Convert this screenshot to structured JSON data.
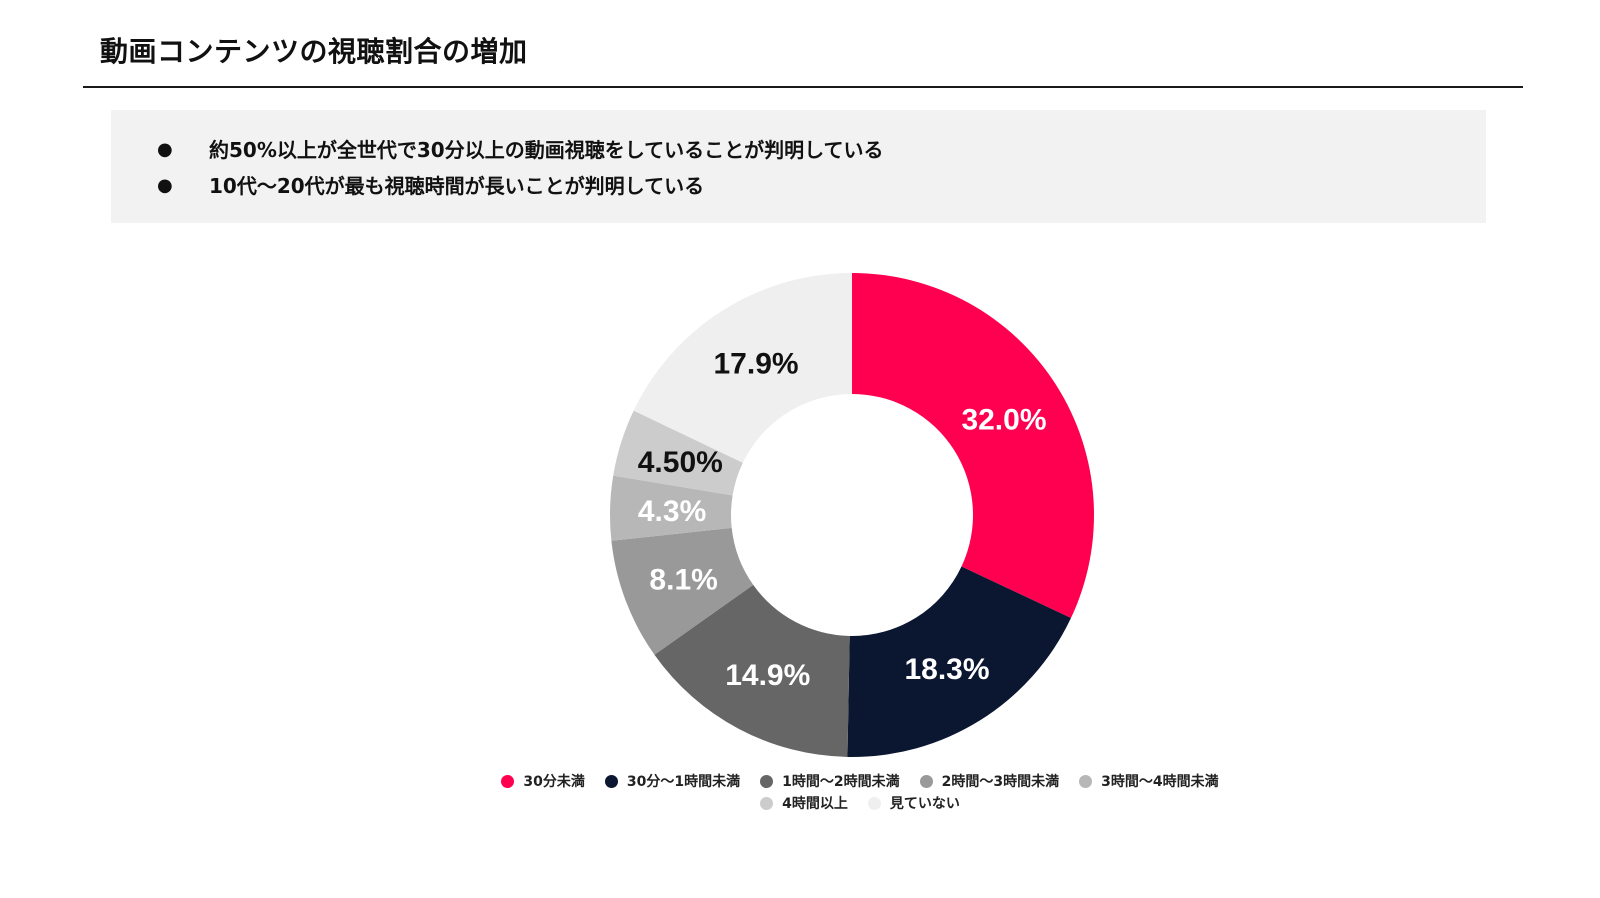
{
  "page": {
    "title": "動画コンテンツの視聴割合の増加"
  },
  "summary": {
    "bullet_glyph": "●",
    "points": [
      "約50%以上が全世代で30分以上の動画視聴をしていることが判明している",
      "10代〜20代が最も視聴時間が長いことが判明している"
    ]
  },
  "chart_data": {
    "type": "pie",
    "donut": true,
    "title": "",
    "categories": [
      "30分未満",
      "30分〜1時間未満",
      "1時間〜2時間未満",
      "2時間〜3時間未満",
      "3時間〜4時間未満",
      "4時間以上",
      "見ていない"
    ],
    "values": [
      32.0,
      18.3,
      14.9,
      8.1,
      4.3,
      4.5,
      17.9
    ],
    "data_labels": [
      "32.0%",
      "18.3%",
      "14.9%",
      "8.1%",
      "4.3%",
      "4.50%",
      "17.9%"
    ],
    "colors": [
      "#ff0050",
      "#0b1630",
      "#666666",
      "#999999",
      "#b7b7b7",
      "#cccccc",
      "#efefef"
    ],
    "label_colors": [
      "#ffffff",
      "#ffffff",
      "#ffffff",
      "#ffffff",
      "#ffffff",
      "#111111",
      "#111111"
    ],
    "start": "12 o'clock",
    "direction": "clockwise",
    "legend_position": "bottom"
  }
}
